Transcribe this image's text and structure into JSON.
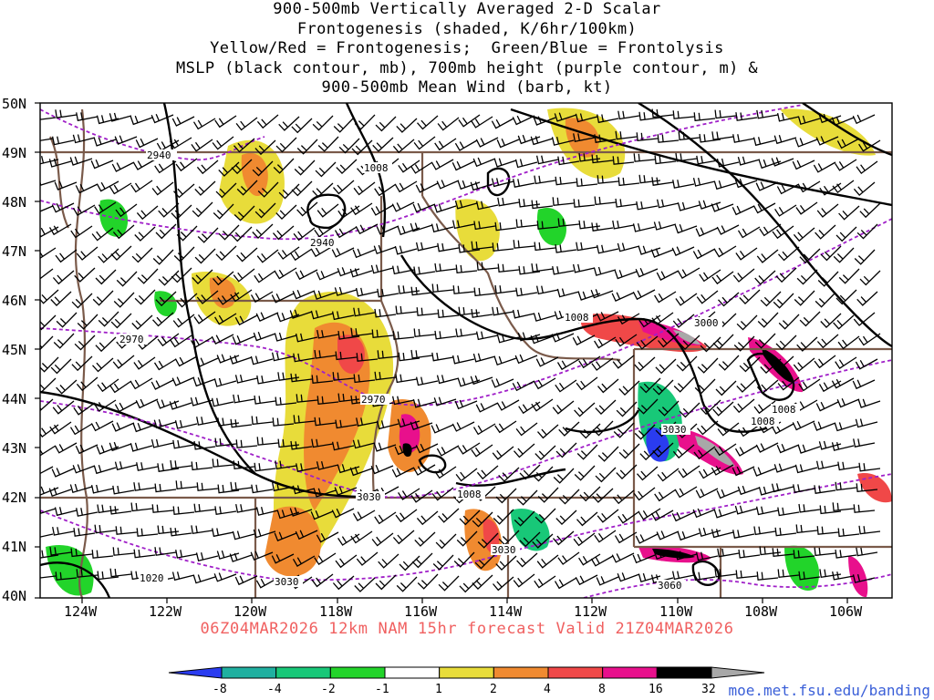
{
  "title": {
    "lines": [
      "900-500mb Vertically Averaged 2-D Scalar",
      "Frontogenesis (shaded, K/6hr/100km)",
      "Yellow/Red = Frontogenesis;  Green/Blue = Frontolysis",
      "MSLP (black contour, mb), 700mb height (purple contour, m) &",
      "900-500mb Mean Wind (barb, kt)"
    ]
  },
  "axes": {
    "lat_labels": [
      "50N",
      "49N",
      "48N",
      "47N",
      "46N",
      "45N",
      "44N",
      "43N",
      "42N",
      "41N",
      "40N"
    ],
    "lon_labels": [
      "124W",
      "122W",
      "120W",
      "118W",
      "116W",
      "114W",
      "112W",
      "110W",
      "108W",
      "106W"
    ]
  },
  "contour_labels": {
    "height": [
      "2940",
      "2940",
      "2970",
      "2970",
      "3030",
      "3030",
      "3000",
      "3030",
      "3060",
      "3030"
    ],
    "mslp": [
      "1008",
      "1008",
      "1008",
      "1008",
      "1008",
      "1020"
    ]
  },
  "valid_text": "06Z04MAR2026 12km NAM 15hr forecast Valid 21Z04MAR2026",
  "source": "moe.met.fsu.edu/banding",
  "colorbar": {
    "labels": [
      "-8",
      "-4",
      "-2",
      "-1",
      "1",
      "2",
      "4",
      "8",
      "16",
      "32"
    ],
    "colors": [
      "#2a3cf0",
      "#1fb0a0",
      "#18c878",
      "#22d42a",
      "#ffffff",
      "#e8dc3a",
      "#f08a30",
      "#f04848",
      "#e8108c",
      "#000000",
      "#a8a8a8"
    ]
  },
  "colors": {
    "state_border": "#7a5a4a",
    "height_contour": "#a020c8",
    "mslp_contour": "#000000",
    "title_valid": "#f06060",
    "url": "#3a5fd8"
  }
}
